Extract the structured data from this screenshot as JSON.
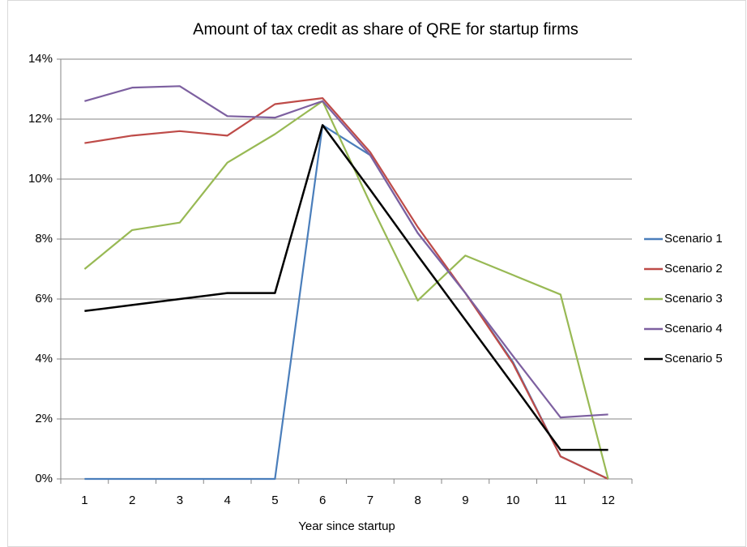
{
  "chart_data": {
    "type": "line",
    "title": "Amount of tax credit as share of QRE for startup firms",
    "x_label": "Year since startup",
    "categories": [
      "1",
      "2",
      "3",
      "4",
      "5",
      "6",
      "7",
      "8",
      "9",
      "10",
      "11",
      "12"
    ],
    "series": [
      {
        "name": "Scenario 1",
        "color": "#4a7ebb",
        "values": [
          0,
          0,
          0,
          0,
          0,
          11.8,
          10.8,
          8.2,
          6.2,
          3.9,
          0.75,
          0
        ]
      },
      {
        "name": "Scenario 2",
        "color": "#be4b48",
        "values": [
          11.2,
          11.45,
          11.6,
          11.45,
          12.5,
          12.7,
          10.9,
          8.4,
          6.2,
          3.85,
          0.75,
          0
        ]
      },
      {
        "name": "Scenario 3",
        "color": "#98b954",
        "values": [
          7.0,
          8.3,
          8.55,
          10.55,
          11.5,
          12.6,
          9.2,
          5.95,
          7.45,
          6.8,
          6.15,
          0
        ]
      },
      {
        "name": "Scenario 4",
        "color": "#7d60a0",
        "values": [
          12.6,
          13.05,
          13.1,
          12.1,
          12.05,
          12.6,
          10.8,
          8.2,
          6.2,
          4.1,
          2.05,
          2.15
        ]
      },
      {
        "name": "Scenario 5",
        "color": "#000000",
        "values": [
          5.6,
          5.8,
          6.0,
          6.2,
          6.2,
          11.8,
          9.65,
          7.45,
          5.3,
          3.15,
          0.97,
          0.97
        ]
      }
    ],
    "ylim": [
      0,
      14
    ],
    "yticks": [
      {
        "value": 0,
        "label": "0%"
      },
      {
        "value": 2,
        "label": "2%"
      },
      {
        "value": 4,
        "label": "4%"
      },
      {
        "value": 6,
        "label": "6%"
      },
      {
        "value": 8,
        "label": "8%"
      },
      {
        "value": 10,
        "label": "10%"
      },
      {
        "value": 12,
        "label": "12%"
      },
      {
        "value": 14,
        "label": "14%"
      }
    ],
    "grid": true,
    "legend": "right"
  }
}
